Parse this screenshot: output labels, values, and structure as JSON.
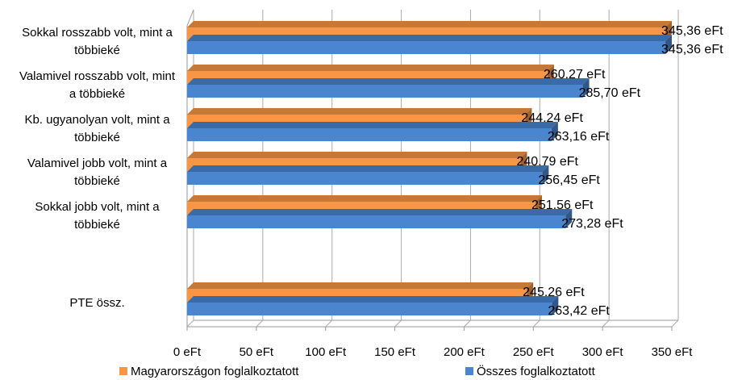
{
  "chart_data": {
    "type": "bar",
    "orientation": "horizontal",
    "3d": true,
    "categories": [
      "Sokkal rosszabb volt, mint a többieké",
      "Valamivel rosszabb volt, mint a többieké",
      "Kb. ugyanolyan volt, mint a többieké",
      "Valamivel jobb volt, mint a többieké",
      "Sokkal jobb volt, mint a többieké",
      null,
      "PTE össz."
    ],
    "series": [
      {
        "name": "Magyarországon foglalkoztatott",
        "color": "#f79646",
        "values": [
          345.36,
          260.27,
          244.24,
          240.79,
          251.56,
          null,
          245.26
        ],
        "value_labels": [
          "345,36 eFt",
          "260,27 eFt",
          "244,24 eFt",
          "240,79 eFt",
          "251,56 eFt",
          null,
          "245,26 eFt"
        ]
      },
      {
        "name": "Összes foglalkoztatott",
        "color": "#4a86d0",
        "values": [
          345.36,
          285.7,
          263.16,
          256.45,
          273.28,
          null,
          263.42
        ],
        "value_labels": [
          "345,36 eFt",
          "285,70 eFt",
          "263,16 eFt",
          "256,45 eFt",
          "273,28 eFt",
          null,
          "263,42 eFt"
        ]
      }
    ],
    "xlim": [
      0,
      350
    ],
    "xticks": [
      {
        "value": 0,
        "label": "0 eFt"
      },
      {
        "value": 50,
        "label": "50 eFt"
      },
      {
        "value": 100,
        "label": "100 eFt"
      },
      {
        "value": 150,
        "label": "150 eFt"
      },
      {
        "value": 200,
        "label": "200 eFt"
      },
      {
        "value": 250,
        "label": "250 eFt"
      },
      {
        "value": 300,
        "label": "300 eFt"
      },
      {
        "value": 350,
        "label": "350 eFt"
      }
    ],
    "grid": true,
    "legend": "bottom"
  }
}
